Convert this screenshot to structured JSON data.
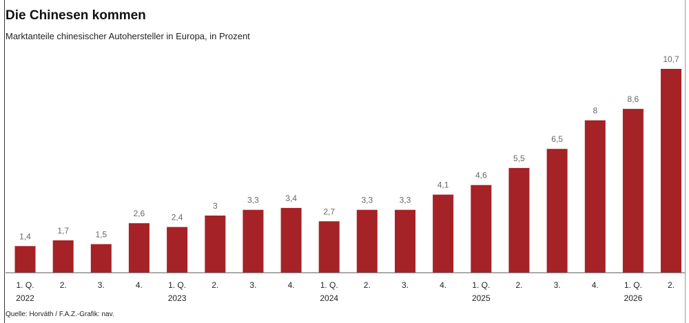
{
  "chart_data": {
    "type": "bar",
    "title": "Die Chinesen kommen",
    "subtitle": "Marktanteile chinesischer Autohersteller in Europa, in Prozent",
    "source": "Quelle: Horváth  / F.A.Z.-Grafik: nav.",
    "categories": [
      "1. Q.",
      "2.",
      "3.",
      "4.",
      "1. Q.",
      "2.",
      "3.",
      "4.",
      "1. Q.",
      "2.",
      "3.",
      "4.",
      "1. Q.",
      "2.",
      "3.",
      "4.",
      "1. Q.",
      "2."
    ],
    "years": [
      {
        "label": "2022",
        "index": 0
      },
      {
        "label": "2023",
        "index": 4
      },
      {
        "label": "2024",
        "index": 8
      },
      {
        "label": "2025",
        "index": 12
      },
      {
        "label": "2026",
        "index": 16
      }
    ],
    "values": [
      1.4,
      1.7,
      1.5,
      2.6,
      2.4,
      3,
      3.3,
      3.4,
      2.7,
      3.3,
      3.3,
      4.1,
      4.6,
      5.5,
      6.5,
      8,
      8.6,
      10.7
    ],
    "value_labels": [
      "1,4",
      "1,7",
      "1,5",
      "2,6",
      "2,4",
      "3",
      "3,3",
      "3,4",
      "2,7",
      "3,3",
      "3,3",
      "4,1",
      "4,6",
      "5,5",
      "6,5",
      "8",
      "8,6",
      "10,7"
    ],
    "ylim": [
      0,
      11.5
    ],
    "grid": false,
    "bar_color": "#a52226"
  }
}
